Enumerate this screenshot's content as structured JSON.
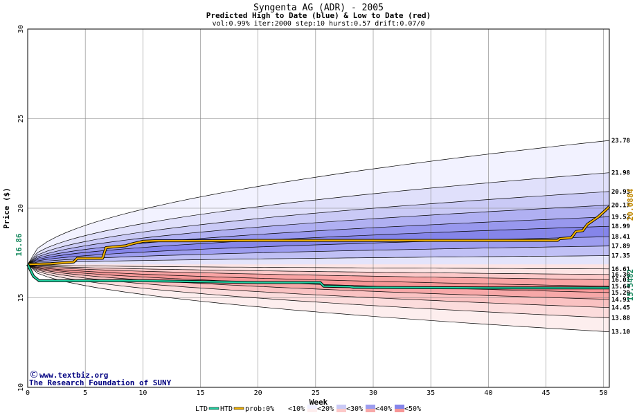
{
  "chart_data": {
    "type": "area",
    "title": "Syngenta AG (ADR) - 2005",
    "subtitle": "Predicted High to Date (blue) &  Low to Date (red)",
    "params": "vol:0.99% iter:2000 step:10 hurst:0.57 drift:0.07/0",
    "xlabel": "Week",
    "ylabel": "Price ($)",
    "xlim": [
      0,
      50.5
    ],
    "ylim": [
      10,
      30
    ],
    "x_ticks": [
      0,
      5,
      10,
      15,
      20,
      25,
      30,
      35,
      40,
      45,
      50
    ],
    "y_ticks": [
      10,
      15,
      20,
      25,
      30
    ],
    "grid": true,
    "start_price": 16.86,
    "start_label": "16.86",
    "htd_end_label": "20.0884",
    "ltd_end_label": "15.5482",
    "credit_line1": "www.textbiz.org",
    "credit_line2": "The Research Foundation of SUNY",
    "high_bands": [
      {
        "end": 30.6,
        "fill": "#ffffff"
      },
      {
        "end": 23.78,
        "fill": "#f2f2ff",
        "label": "23.78"
      },
      {
        "end": 21.98,
        "fill": "#e0e0fb",
        "label": "21.98"
      },
      {
        "end": 20.93,
        "fill": "#cacaf6",
        "label": "20.93"
      },
      {
        "end": 20.17,
        "fill": "#b0b0f2",
        "label": "20.17"
      },
      {
        "end": 19.52,
        "fill": "#9898ee",
        "label": "19.52"
      },
      {
        "end": 18.99,
        "fill": "#8585ea",
        "label": "18.99"
      },
      {
        "end": 18.41,
        "fill": "#9d9def",
        "label": "18.41"
      },
      {
        "end": 17.89,
        "fill": "#c0c0f5",
        "label": "17.89"
      },
      {
        "end": 17.35,
        "fill": "#e4e4fb",
        "label": "17.35"
      },
      {
        "end": 16.61,
        "fill": "#ffffff",
        "label": "16.61"
      }
    ],
    "low_bands": [
      {
        "end": 16.3,
        "fill": "#fde4e4",
        "label": "16.30"
      },
      {
        "end": 16.01,
        "fill": "#fcc8c8",
        "label": "16.01"
      },
      {
        "end": 15.64,
        "fill": "#f9a4a4",
        "label": "15.64"
      },
      {
        "end": 15.29,
        "fill": "#f69696",
        "label": "15.29"
      },
      {
        "end": 14.91,
        "fill": "#f7a8a8",
        "label": "14.91"
      },
      {
        "end": 14.45,
        "fill": "#fac2c2",
        "label": "14.45"
      },
      {
        "end": 13.88,
        "fill": "#fcdcdc",
        "label": "13.88"
      },
      {
        "end": 13.1,
        "fill": "#fdeeee",
        "label": "13.10"
      },
      {
        "end": 10.0,
        "fill": "#ffffff"
      }
    ],
    "series": [
      {
        "name": "HTD",
        "color": "#f0b000",
        "points": [
          [
            0,
            16.86
          ],
          [
            2,
            16.9
          ],
          [
            4,
            17.0
          ],
          [
            4.3,
            17.2
          ],
          [
            6.5,
            17.2
          ],
          [
            6.8,
            17.8
          ],
          [
            8.5,
            17.9
          ],
          [
            9,
            18.0
          ],
          [
            10,
            18.15
          ],
          [
            11,
            18.18
          ],
          [
            15,
            18.18
          ],
          [
            20,
            18.2
          ],
          [
            30,
            18.2
          ],
          [
            46,
            18.2
          ],
          [
            46.2,
            18.3
          ],
          [
            47.2,
            18.35
          ],
          [
            47.6,
            18.7
          ],
          [
            48.2,
            18.75
          ],
          [
            48.6,
            19.1
          ],
          [
            49.5,
            19.5
          ],
          [
            50.2,
            19.9
          ],
          [
            50.5,
            20.0884
          ]
        ]
      },
      {
        "name": "LTD",
        "color": "#20d0a0",
        "points": [
          [
            0,
            16.86
          ],
          [
            0.5,
            16.2
          ],
          [
            1,
            15.95
          ],
          [
            10,
            15.95
          ],
          [
            20,
            15.85
          ],
          [
            25.4,
            15.85
          ],
          [
            25.7,
            15.65
          ],
          [
            28,
            15.62
          ],
          [
            28.3,
            15.58
          ],
          [
            40,
            15.55
          ],
          [
            50.5,
            15.5482
          ]
        ]
      }
    ],
    "legend": {
      "ltd": "LTD",
      "htd": "HTD",
      "prob": "prob:0%",
      "items": [
        {
          "label": "<10%",
          "colors": [
            "#ffffff",
            "#ffffff"
          ]
        },
        {
          "label": "<20%",
          "colors": [
            "#f0f0ff",
            "#fdeeee"
          ]
        },
        {
          "label": "<30%",
          "colors": [
            "#cacaf6",
            "#fcc8c8"
          ]
        },
        {
          "label": "<40%",
          "colors": [
            "#9d9def",
            "#f7a8a8"
          ]
        },
        {
          "label": "<50%",
          "colors": [
            "#8585ea",
            "#f69696"
          ]
        }
      ]
    }
  }
}
